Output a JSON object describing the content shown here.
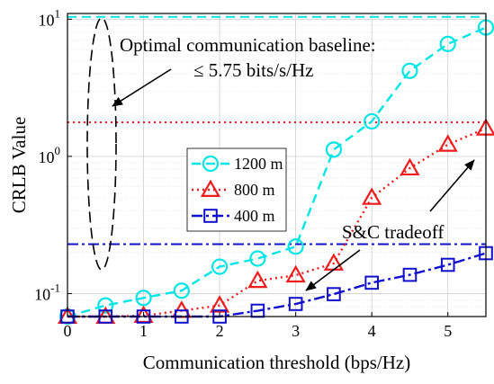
{
  "chart_data": {
    "type": "line",
    "xlabel": "Communication threshold (bps/Hz)",
    "ylabel": "CRLB Value",
    "xlim": [
      0,
      5.5
    ],
    "ylim": [
      0.068,
      11
    ],
    "y_scale": "log",
    "grid": true,
    "legend_position": "center-left",
    "x_ticks": [
      "0",
      "1",
      "2",
      "3",
      "4",
      "5"
    ],
    "y_ticks": [
      {
        "value": 0.1,
        "base": "10",
        "exp": "-1"
      },
      {
        "value": 1,
        "base": "10",
        "exp": "0"
      },
      {
        "value": 10,
        "base": "10",
        "exp": "1"
      }
    ],
    "x": [
      0,
      0.5,
      1,
      1.5,
      2,
      2.5,
      3,
      3.5,
      4,
      4.5,
      5,
      5.5
    ],
    "series": [
      {
        "name": "1200 m",
        "color": "#00e5e5",
        "marker": "circle",
        "line_style": "dashed",
        "values": [
          0.068,
          0.082,
          0.093,
          0.105,
          0.157,
          0.18,
          0.22,
          1.12,
          1.8,
          4.2,
          6.6,
          8.7
        ],
        "baseline": 10.4
      },
      {
        "name": "800 m",
        "color": "#ee1c1c",
        "marker": "triangle",
        "line_style": "dotted",
        "values": [
          0.068,
          0.068,
          0.069,
          0.075,
          0.082,
          0.124,
          0.136,
          0.166,
          0.5,
          0.82,
          1.22,
          1.6
        ],
        "baseline": 1.77
      },
      {
        "name": "400 m",
        "color": "#1010cc",
        "marker": "square",
        "line_style": "dashdot",
        "values": [
          0.068,
          0.068,
          0.068,
          0.068,
          0.068,
          0.075,
          0.084,
          0.099,
          0.12,
          0.137,
          0.162,
          0.197
        ],
        "baseline": 0.229
      }
    ],
    "annotations": {
      "baseline_line1": "Optimal communication baseline:",
      "baseline_line2": "≤ 5.75 bits/s/Hz",
      "tradeoff": "S&C tradeoff"
    }
  }
}
